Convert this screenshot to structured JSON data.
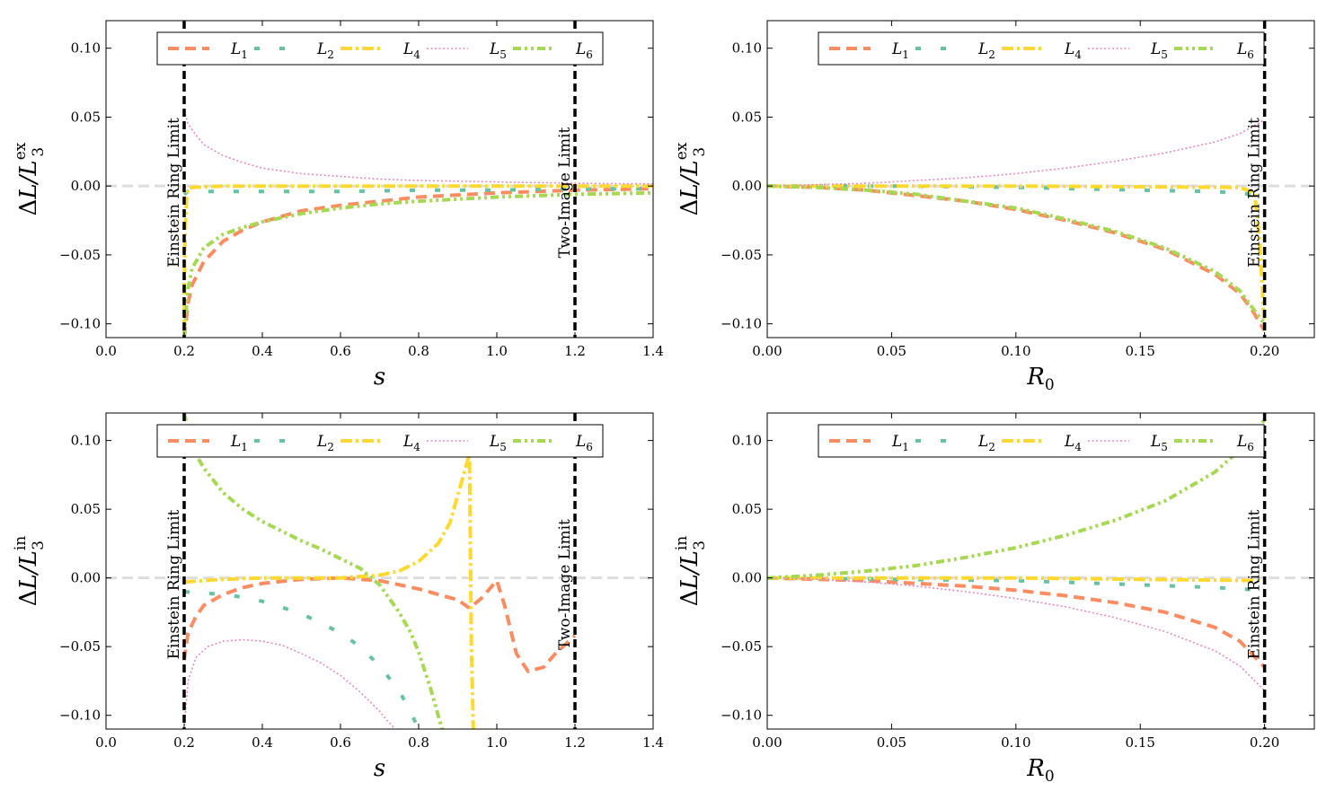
{
  "colors": {
    "L1": "#fc8d62",
    "L2": "#66c2a5",
    "L4": "#ffd92f",
    "L5": "#e78ac3",
    "L6": "#a6d854",
    "zero": "#dddddd",
    "vline": "#000000"
  },
  "chart_data": [
    {
      "type": "line",
      "panel": "top-left",
      "xlabel": "s",
      "ylabel": {
        "base": "ΔL/L",
        "sub": "3",
        "sup": "ex"
      },
      "xlim": [
        0.0,
        1.4
      ],
      "ylim": [
        -0.11,
        0.12
      ],
      "xticks": [
        0.0,
        0.2,
        0.4,
        0.6,
        0.8,
        1.0,
        1.2,
        1.4
      ],
      "xtick_labels": [
        "0.0",
        "0.2",
        "0.4",
        "0.6",
        "0.8",
        "1.0",
        "1.2",
        "1.4"
      ],
      "yticks": [
        -0.1,
        -0.05,
        0.0,
        0.05,
        0.1
      ],
      "ytick_labels": [
        "−0.10",
        "−0.05",
        "0.00",
        "0.05",
        "0.10"
      ],
      "vlines": [
        {
          "x": 0.2,
          "label": "Einstein Ring Limit"
        },
        {
          "x": 1.2,
          "label": "Two-Image Limit"
        }
      ],
      "legend": {
        "location": "top",
        "entries": [
          {
            "key": "L1",
            "base": "L",
            "sub": "1"
          },
          {
            "key": "L2",
            "base": "L",
            "sub": "2"
          },
          {
            "key": "L4",
            "base": "L",
            "sub": "4"
          },
          {
            "key": "L5",
            "base": "L",
            "sub": "5"
          },
          {
            "key": "L6",
            "base": "L",
            "sub": "6"
          }
        ]
      },
      "series": [
        {
          "key": "L1",
          "name": "L1",
          "x": [
            0.2,
            0.205,
            0.21,
            0.22,
            0.25,
            0.3,
            0.35,
            0.4,
            0.5,
            0.6,
            0.7,
            0.8,
            1.0,
            1.2,
            1.4
          ],
          "y": [
            -0.11,
            -0.098,
            -0.085,
            -0.072,
            -0.055,
            -0.04,
            -0.032,
            -0.026,
            -0.018,
            -0.014,
            -0.011,
            -0.008,
            -0.005,
            -0.003,
            -0.002
          ]
        },
        {
          "key": "L2",
          "name": "L2",
          "x": [
            0.2,
            0.21,
            0.25,
            0.3,
            0.4,
            0.6,
            0.8,
            1.0,
            1.2,
            1.4
          ],
          "y": [
            -0.006,
            -0.004,
            -0.004,
            -0.004,
            -0.004,
            -0.004,
            -0.003,
            -0.003,
            -0.002,
            -0.002
          ]
        },
        {
          "key": "L4",
          "name": "L4",
          "x": [
            0.2,
            0.201,
            0.203,
            0.206,
            0.21,
            0.22,
            0.3,
            0.5,
            0.8,
            1.2,
            1.4
          ],
          "y": [
            -0.11,
            -0.06,
            -0.03,
            -0.01,
            -0.002,
            -0.001,
            0.0,
            0.0,
            0.0,
            0.0,
            0.0
          ]
        },
        {
          "key": "L5",
          "name": "L5",
          "x": [
            0.2,
            0.21,
            0.23,
            0.25,
            0.3,
            0.35,
            0.4,
            0.5,
            0.6,
            0.7,
            0.8,
            1.0,
            1.2,
            1.4
          ],
          "y": [
            0.055,
            0.045,
            0.037,
            0.03,
            0.022,
            0.017,
            0.013,
            0.009,
            0.007,
            0.005,
            0.004,
            0.003,
            0.002,
            0.0015
          ]
        },
        {
          "key": "L6",
          "name": "L6",
          "x": [
            0.2,
            0.205,
            0.21,
            0.22,
            0.25,
            0.3,
            0.35,
            0.4,
            0.5,
            0.6,
            0.7,
            0.8,
            1.0,
            1.2,
            1.4
          ],
          "y": [
            -0.11,
            -0.09,
            -0.075,
            -0.06,
            -0.045,
            -0.035,
            -0.03,
            -0.026,
            -0.02,
            -0.016,
            -0.013,
            -0.011,
            -0.008,
            -0.006,
            -0.005
          ]
        }
      ]
    },
    {
      "type": "line",
      "panel": "top-right",
      "xlabel": "R",
      "xlabel_sub": "0",
      "ylabel": {
        "base": "ΔL/L",
        "sub": "3",
        "sup": "ex"
      },
      "xlim": [
        0.0,
        0.22
      ],
      "ylim": [
        -0.11,
        0.12
      ],
      "xticks": [
        0.0,
        0.05,
        0.1,
        0.15,
        0.2
      ],
      "xtick_labels": [
        "0.00",
        "0.05",
        "0.10",
        "0.15",
        "0.20"
      ],
      "yticks": [
        -0.1,
        -0.05,
        0.0,
        0.05,
        0.1
      ],
      "ytick_labels": [
        "−0.10",
        "−0.05",
        "0.00",
        "0.05",
        "0.10"
      ],
      "vlines": [
        {
          "x": 0.2,
          "label": "Einstein Ring Limit"
        }
      ],
      "legend": {
        "location": "top",
        "entries": [
          {
            "key": "L1",
            "base": "L",
            "sub": "1"
          },
          {
            "key": "L2",
            "base": "L",
            "sub": "2"
          },
          {
            "key": "L4",
            "base": "L",
            "sub": "4"
          },
          {
            "key": "L5",
            "base": "L",
            "sub": "5"
          },
          {
            "key": "L6",
            "base": "L",
            "sub": "6"
          }
        ]
      },
      "series": [
        {
          "key": "L1",
          "name": "L1",
          "x": [
            0.0,
            0.02,
            0.04,
            0.06,
            0.08,
            0.1,
            0.12,
            0.14,
            0.16,
            0.18,
            0.19,
            0.195,
            0.2
          ],
          "y": [
            0.0,
            -0.001,
            -0.003,
            -0.007,
            -0.011,
            -0.017,
            -0.025,
            -0.034,
            -0.046,
            -0.064,
            -0.078,
            -0.09,
            -0.105
          ]
        },
        {
          "key": "L2",
          "name": "L2",
          "x": [
            0.0,
            0.05,
            0.1,
            0.15,
            0.18,
            0.195,
            0.2
          ],
          "y": [
            0.0,
            0.0,
            -0.001,
            -0.003,
            -0.004,
            -0.006,
            -0.007
          ]
        },
        {
          "key": "L4",
          "name": "L4",
          "x": [
            0.0,
            0.1,
            0.19,
            0.196,
            0.198,
            0.199,
            0.2
          ],
          "y": [
            0.0,
            0.0,
            -0.001,
            -0.005,
            -0.04,
            -0.07,
            -0.105
          ]
        },
        {
          "key": "L5",
          "name": "L5",
          "x": [
            0.0,
            0.02,
            0.04,
            0.06,
            0.08,
            0.1,
            0.12,
            0.14,
            0.16,
            0.18,
            0.19,
            0.2
          ],
          "y": [
            0.0,
            0.001,
            0.002,
            0.004,
            0.006,
            0.009,
            0.013,
            0.018,
            0.024,
            0.032,
            0.038,
            0.048
          ]
        },
        {
          "key": "L6",
          "name": "L6",
          "x": [
            0.0,
            0.02,
            0.04,
            0.06,
            0.08,
            0.1,
            0.12,
            0.14,
            0.16,
            0.18,
            0.19,
            0.2
          ],
          "y": [
            0.0,
            -0.001,
            -0.003,
            -0.006,
            -0.011,
            -0.016,
            -0.024,
            -0.033,
            -0.045,
            -0.062,
            -0.076,
            -0.1
          ]
        }
      ]
    },
    {
      "type": "line",
      "panel": "bottom-left",
      "xlabel": "s",
      "ylabel": {
        "base": "ΔL/L",
        "sub": "3",
        "sup": "in"
      },
      "xlim": [
        0.0,
        1.4
      ],
      "ylim": [
        -0.11,
        0.12
      ],
      "xticks": [
        0.0,
        0.2,
        0.4,
        0.6,
        0.8,
        1.0,
        1.2,
        1.4
      ],
      "xtick_labels": [
        "0.0",
        "0.2",
        "0.4",
        "0.6",
        "0.8",
        "1.0",
        "1.2",
        "1.4"
      ],
      "yticks": [
        -0.1,
        -0.05,
        0.0,
        0.05,
        0.1
      ],
      "ytick_labels": [
        "−0.10",
        "−0.05",
        "0.00",
        "0.05",
        "0.10"
      ],
      "vlines": [
        {
          "x": 0.2,
          "label": "Einstein Ring Limit"
        },
        {
          "x": 1.2,
          "label": "Two-Image Limit"
        }
      ],
      "legend": {
        "location": "top",
        "entries": [
          {
            "key": "L1",
            "base": "L",
            "sub": "1"
          },
          {
            "key": "L2",
            "base": "L",
            "sub": "2"
          },
          {
            "key": "L4",
            "base": "L",
            "sub": "4"
          },
          {
            "key": "L5",
            "base": "L",
            "sub": "5"
          },
          {
            "key": "L6",
            "base": "L",
            "sub": "6"
          }
        ]
      },
      "series": [
        {
          "key": "L1",
          "name": "L1",
          "x": [
            0.2,
            0.21,
            0.23,
            0.25,
            0.3,
            0.35,
            0.4,
            0.5,
            0.6,
            0.7,
            0.8,
            0.9,
            0.93,
            0.96,
            1.0,
            1.02,
            1.05,
            1.08,
            1.12,
            1.15,
            1.2
          ],
          "y": [
            -0.06,
            -0.04,
            -0.028,
            -0.02,
            -0.012,
            -0.007,
            -0.004,
            -0.001,
            0.0,
            -0.002,
            -0.008,
            -0.016,
            -0.022,
            -0.015,
            -0.002,
            -0.02,
            -0.055,
            -0.068,
            -0.065,
            -0.055,
            -0.042
          ]
        },
        {
          "key": "L2",
          "name": "L2",
          "x": [
            0.2,
            0.25,
            0.3,
            0.35,
            0.4,
            0.5,
            0.6,
            0.65,
            0.7,
            0.75,
            0.78,
            0.8
          ],
          "y": [
            -0.01,
            -0.011,
            -0.012,
            -0.014,
            -0.017,
            -0.026,
            -0.04,
            -0.05,
            -0.064,
            -0.082,
            -0.098,
            -0.11
          ]
        },
        {
          "key": "L4",
          "name": "L4",
          "x": [
            0.2,
            0.25,
            0.3,
            0.4,
            0.5,
            0.6,
            0.7,
            0.75,
            0.8,
            0.85,
            0.88,
            0.9,
            0.92,
            0.93,
            0.935,
            0.94
          ],
          "y": [
            -0.003,
            -0.002,
            -0.001,
            0.0,
            0.0,
            0.0,
            0.002,
            0.005,
            0.012,
            0.025,
            0.04,
            0.06,
            0.08,
            0.09,
            -0.05,
            -0.11
          ]
        },
        {
          "key": "L5",
          "name": "L5",
          "x": [
            0.2,
            0.21,
            0.23,
            0.26,
            0.3,
            0.35,
            0.4,
            0.45,
            0.5,
            0.55,
            0.6,
            0.65,
            0.7,
            0.72,
            0.74
          ],
          "y": [
            -0.11,
            -0.075,
            -0.058,
            -0.05,
            -0.046,
            -0.045,
            -0.046,
            -0.049,
            -0.055,
            -0.062,
            -0.071,
            -0.083,
            -0.097,
            -0.104,
            -0.11
          ]
        },
        {
          "key": "L6",
          "name": "L6",
          "x": [
            0.2,
            0.22,
            0.25,
            0.3,
            0.35,
            0.4,
            0.45,
            0.5,
            0.55,
            0.6,
            0.65,
            0.7,
            0.72,
            0.75,
            0.78,
            0.8,
            0.83,
            0.86
          ],
          "y": [
            0.12,
            0.095,
            0.08,
            0.062,
            0.05,
            0.041,
            0.034,
            0.027,
            0.021,
            0.014,
            0.007,
            -0.005,
            -0.013,
            -0.025,
            -0.04,
            -0.054,
            -0.08,
            -0.11
          ]
        }
      ]
    },
    {
      "type": "line",
      "panel": "bottom-right",
      "xlabel": "R",
      "xlabel_sub": "0",
      "ylabel": {
        "base": "ΔL/L",
        "sub": "3",
        "sup": "in"
      },
      "xlim": [
        0.0,
        0.22
      ],
      "ylim": [
        -0.11,
        0.12
      ],
      "xticks": [
        0.0,
        0.05,
        0.1,
        0.15,
        0.2
      ],
      "xtick_labels": [
        "0.00",
        "0.05",
        "0.10",
        "0.15",
        "0.20"
      ],
      "yticks": [
        -0.1,
        -0.05,
        0.0,
        0.05,
        0.1
      ],
      "ytick_labels": [
        "−0.10",
        "−0.05",
        "0.00",
        "0.05",
        "0.10"
      ],
      "vlines": [
        {
          "x": 0.2,
          "label": "Einstein Ring Limit"
        }
      ],
      "legend": {
        "location": "top",
        "entries": [
          {
            "key": "L1",
            "base": "L",
            "sub": "1"
          },
          {
            "key": "L2",
            "base": "L",
            "sub": "2"
          },
          {
            "key": "L4",
            "base": "L",
            "sub": "4"
          },
          {
            "key": "L5",
            "base": "L",
            "sub": "5"
          },
          {
            "key": "L6",
            "base": "L",
            "sub": "6"
          }
        ]
      },
      "series": [
        {
          "key": "L1",
          "name": "L1",
          "x": [
            0.0,
            0.02,
            0.04,
            0.06,
            0.08,
            0.1,
            0.12,
            0.14,
            0.16,
            0.18,
            0.19,
            0.2
          ],
          "y": [
            0.0,
            -0.001,
            -0.002,
            -0.004,
            -0.006,
            -0.009,
            -0.013,
            -0.018,
            -0.025,
            -0.036,
            -0.046,
            -0.065
          ]
        },
        {
          "key": "L2",
          "name": "L2",
          "x": [
            0.0,
            0.05,
            0.1,
            0.15,
            0.18,
            0.2
          ],
          "y": [
            0.0,
            -0.001,
            -0.002,
            -0.005,
            -0.007,
            -0.009
          ]
        },
        {
          "key": "L4",
          "name": "L4",
          "x": [
            0.0,
            0.1,
            0.15,
            0.2
          ],
          "y": [
            0.0,
            0.0,
            -0.001,
            -0.002
          ]
        },
        {
          "key": "L5",
          "name": "L5",
          "x": [
            0.0,
            0.02,
            0.04,
            0.06,
            0.08,
            0.1,
            0.12,
            0.14,
            0.16,
            0.18,
            0.19,
            0.2
          ],
          "y": [
            0.0,
            -0.001,
            -0.003,
            -0.006,
            -0.01,
            -0.015,
            -0.021,
            -0.029,
            -0.039,
            -0.053,
            -0.064,
            -0.082
          ]
        },
        {
          "key": "L6",
          "name": "L6",
          "x": [
            0.0,
            0.02,
            0.04,
            0.06,
            0.08,
            0.1,
            0.12,
            0.14,
            0.16,
            0.18,
            0.19,
            0.2
          ],
          "y": [
            0.0,
            0.002,
            0.005,
            0.009,
            0.015,
            0.022,
            0.031,
            0.042,
            0.056,
            0.077,
            0.093,
            0.115
          ]
        }
      ]
    }
  ]
}
